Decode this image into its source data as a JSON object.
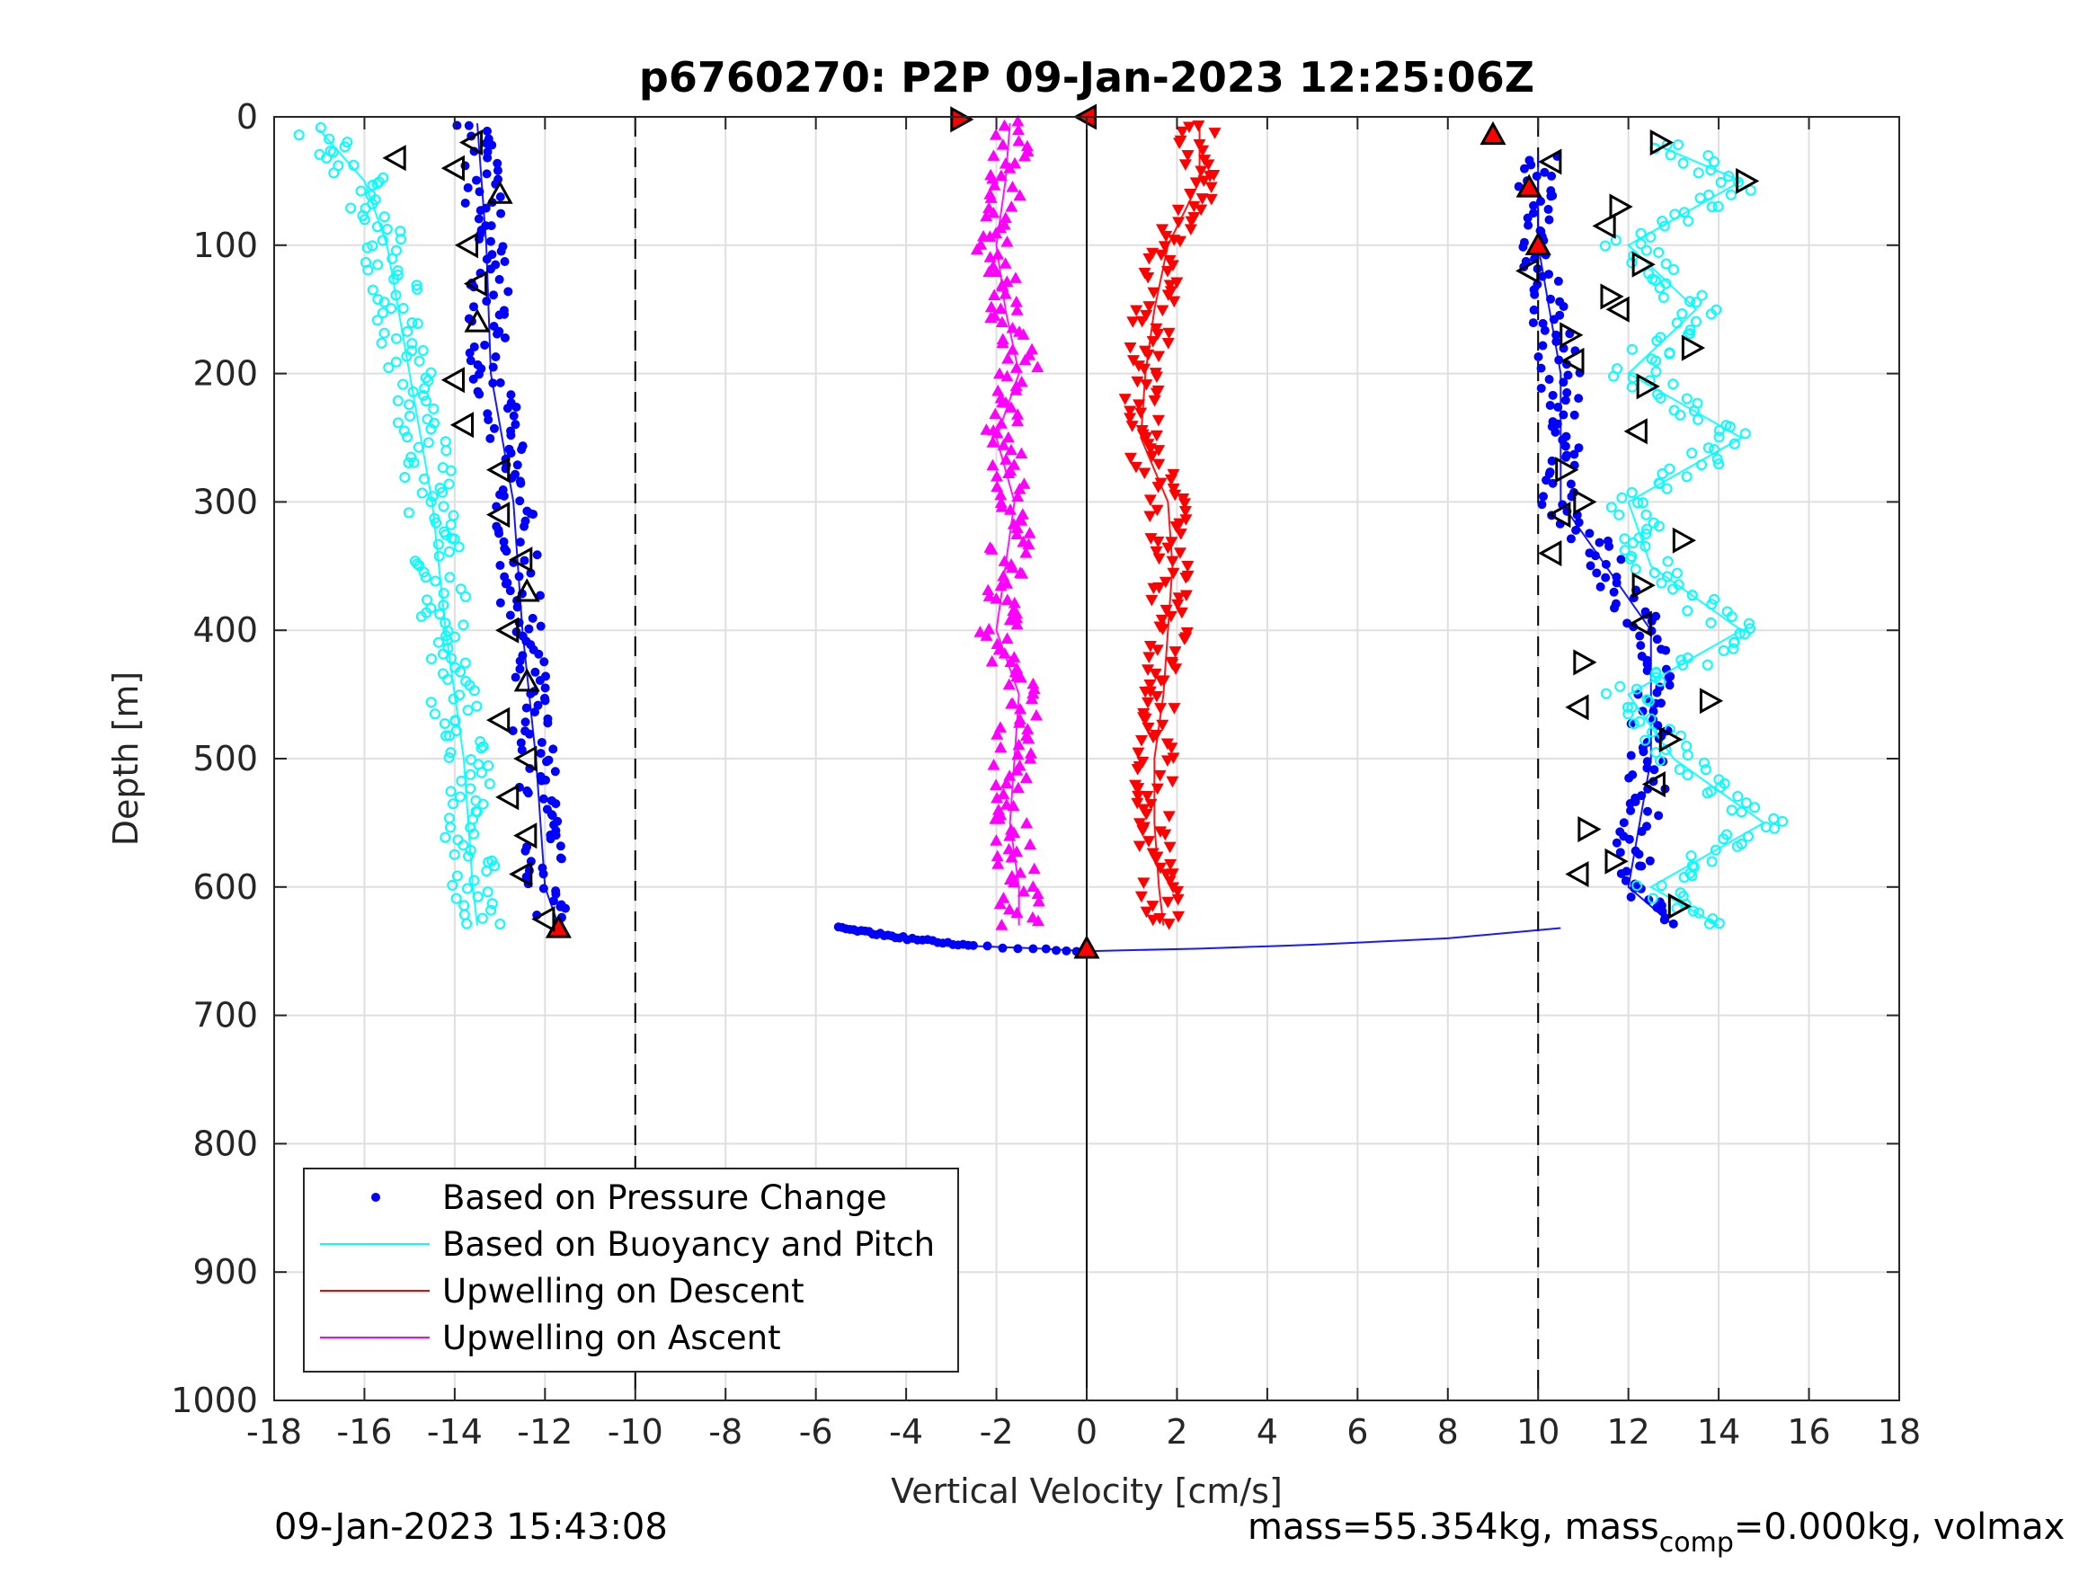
{
  "chart_data": {
    "type": "scatter",
    "title": "p6760270: P2P 09-Jan-2023 12:25:06Z",
    "xlabel": "Vertical Velocity [cm/s]",
    "ylabel": "Depth [m]",
    "xlim": [
      -18,
      18
    ],
    "ylim": [
      0,
      1000
    ],
    "y_reversed": true,
    "grid": true,
    "legend_position": "bottom-left",
    "xticks": [
      "-18",
      "-16",
      "-14",
      "-12",
      "-10",
      "-8",
      "-6",
      "-4",
      "-2",
      "0",
      "2",
      "4",
      "6",
      "8",
      "10",
      "12",
      "14",
      "16",
      "18"
    ],
    "yticks": [
      "0",
      "100",
      "200",
      "300",
      "400",
      "500",
      "600",
      "700",
      "800",
      "900",
      "1000"
    ],
    "reference_lines": [
      {
        "x": -10,
        "style": "dashed"
      },
      {
        "x": 10,
        "style": "dashed"
      },
      {
        "x": 0,
        "style": "solid"
      }
    ],
    "series": [
      {
        "name": "Based on Pressure Change",
        "color": "#0000ff",
        "marker": "dot",
        "segments": [
          {
            "depth": [
              5,
              100,
              200,
              300,
              400,
              500,
              600,
              630
            ],
            "velocity": [
              -13.5,
              -13.3,
              -13.2,
              -12.7,
              -12.5,
              -12.2,
              -12.0,
              -11.7
            ]
          },
          {
            "depth": [
              632,
              640,
              646,
              648,
              650,
              648,
              645,
              640,
              632
            ],
            "velocity": [
              -5.5,
              -4.0,
              -2.5,
              -1.0,
              0.0,
              2.5,
              5.0,
              8.0,
              10.5
            ]
          },
          {
            "depth": [
              630,
              600,
              500,
              400,
              300,
              200,
              100,
              30
            ],
            "velocity": [
              13.0,
              12.0,
              12.5,
              12.5,
              10.5,
              10.5,
              10.0,
              10.0
            ]
          }
        ]
      },
      {
        "name": "Based on Buoyancy and Pitch",
        "color": "#00ffff",
        "marker": "circle",
        "segments": [
          {
            "depth": [
              10,
              50,
              100,
              200,
              300,
              400,
              500,
              600,
              630
            ],
            "velocity": [
              -17.0,
              -16.0,
              -15.5,
              -15.0,
              -14.5,
              -14.2,
              -13.8,
              -13.6,
              -13.5
            ]
          },
          {
            "depth": [
              630,
              600,
              550,
              500,
              450,
              400,
              350,
              300,
              250,
              200,
              150,
              100,
              50,
              20
            ],
            "velocity": [
              14.0,
              12.5,
              15.0,
              13.0,
              12.0,
              14.5,
              12.5,
              12.0,
              14.5,
              12.0,
              13.5,
              12.0,
              14.5,
              12.5
            ]
          }
        ]
      },
      {
        "name": "Upwelling on Descent",
        "color": "#ff0000",
        "marker": "triangle-down",
        "segments": [
          {
            "depth": [
              5,
              50,
              100,
              150,
              200,
              250,
              300,
              350,
              400,
              450,
              500,
              550,
              600,
              630
            ],
            "velocity": [
              2.5,
              2.5,
              1.8,
              1.5,
              1.3,
              1.2,
              1.8,
              1.9,
              1.8,
              1.7,
              1.5,
              1.5,
              1.6,
              1.7
            ]
          }
        ]
      },
      {
        "name": "Upwelling on Ascent",
        "color": "#ff00ff",
        "marker": "triangle-up",
        "segments": [
          {
            "depth": [
              630,
              600,
              550,
              500,
              450,
              400,
              350,
              300,
              250,
              200,
              150,
              100,
              50,
              5
            ],
            "velocity": [
              -1.5,
              -1.5,
              -1.7,
              -1.6,
              -1.5,
              -2.0,
              -1.8,
              -1.6,
              -2.0,
              -1.5,
              -1.8,
              -2.0,
              -1.8,
              -1.7
            ]
          }
        ]
      }
    ],
    "event_markers": [
      {
        "depth": 2,
        "velocity": -2.8,
        "shape": "triangle-right",
        "fill": "#ff0000"
      },
      {
        "depth": 0,
        "velocity": 0.0,
        "shape": "triangle-left",
        "fill": "#ff0000"
      },
      {
        "depth": 14,
        "velocity": 9.0,
        "shape": "triangle-up",
        "fill": "#ff0000"
      },
      {
        "depth": 55,
        "velocity": 9.8,
        "shape": "triangle-up",
        "fill": "#ff0000"
      },
      {
        "depth": 100,
        "velocity": 10.0,
        "shape": "triangle-up",
        "fill": "#ff0000"
      },
      {
        "depth": 632,
        "velocity": -11.7,
        "shape": "triangle-up",
        "fill": "#ff0000"
      },
      {
        "depth": 648,
        "velocity": 0.0,
        "shape": "triangle-up",
        "fill": "#ff0000"
      },
      {
        "depth": 32,
        "velocity": -15.3,
        "shape": "triangle-left",
        "fill": "none"
      },
      {
        "depth": 20,
        "velocity": -13.6,
        "shape": "triangle-left",
        "fill": "none"
      },
      {
        "depth": 40,
        "velocity": -14.0,
        "shape": "triangle-left",
        "fill": "none"
      },
      {
        "depth": 60,
        "velocity": -13.0,
        "shape": "triangle-up",
        "fill": "none"
      },
      {
        "depth": 100,
        "velocity": -13.7,
        "shape": "triangle-left",
        "fill": "none"
      },
      {
        "depth": 130,
        "velocity": -13.5,
        "shape": "triangle-left",
        "fill": "none"
      },
      {
        "depth": 160,
        "velocity": -13.5,
        "shape": "triangle-up",
        "fill": "none"
      },
      {
        "depth": 205,
        "velocity": -14.0,
        "shape": "triangle-left",
        "fill": "none"
      },
      {
        "depth": 240,
        "velocity": -13.8,
        "shape": "triangle-left",
        "fill": "none"
      },
      {
        "depth": 275,
        "velocity": -13.0,
        "shape": "triangle-left",
        "fill": "none"
      },
      {
        "depth": 310,
        "velocity": -13.0,
        "shape": "triangle-left",
        "fill": "none"
      },
      {
        "depth": 345,
        "velocity": -12.5,
        "shape": "triangle-left",
        "fill": "none"
      },
      {
        "depth": 370,
        "velocity": -12.4,
        "shape": "triangle-up",
        "fill": "none"
      },
      {
        "depth": 400,
        "velocity": -12.8,
        "shape": "triangle-left",
        "fill": "none"
      },
      {
        "depth": 440,
        "velocity": -12.4,
        "shape": "triangle-up",
        "fill": "none"
      },
      {
        "depth": 470,
        "velocity": -13.0,
        "shape": "triangle-left",
        "fill": "none"
      },
      {
        "depth": 500,
        "velocity": -12.4,
        "shape": "triangle-left",
        "fill": "none"
      },
      {
        "depth": 530,
        "velocity": -12.8,
        "shape": "triangle-left",
        "fill": "none"
      },
      {
        "depth": 560,
        "velocity": -12.4,
        "shape": "triangle-left",
        "fill": "none"
      },
      {
        "depth": 590,
        "velocity": -12.5,
        "shape": "triangle-left",
        "fill": "none"
      },
      {
        "depth": 625,
        "velocity": -12.0,
        "shape": "triangle-left",
        "fill": "none"
      },
      {
        "depth": 20,
        "velocity": 12.7,
        "shape": "triangle-right",
        "fill": "none"
      },
      {
        "depth": 50,
        "velocity": 14.6,
        "shape": "triangle-right",
        "fill": "none"
      },
      {
        "depth": 35,
        "velocity": 10.3,
        "shape": "triangle-left",
        "fill": "none"
      },
      {
        "depth": 70,
        "velocity": 11.8,
        "shape": "triangle-right",
        "fill": "none"
      },
      {
        "depth": 85,
        "velocity": 11.5,
        "shape": "triangle-left",
        "fill": "none"
      },
      {
        "depth": 115,
        "velocity": 12.3,
        "shape": "triangle-right",
        "fill": "none"
      },
      {
        "depth": 120,
        "velocity": 9.8,
        "shape": "triangle-left",
        "fill": "none"
      },
      {
        "depth": 140,
        "velocity": 11.6,
        "shape": "triangle-right",
        "fill": "none"
      },
      {
        "depth": 150,
        "velocity": 11.8,
        "shape": "triangle-left",
        "fill": "none"
      },
      {
        "depth": 170,
        "velocity": 10.7,
        "shape": "triangle-right",
        "fill": "none"
      },
      {
        "depth": 180,
        "velocity": 13.4,
        "shape": "triangle-right",
        "fill": "none"
      },
      {
        "depth": 190,
        "velocity": 10.8,
        "shape": "triangle-left",
        "fill": "none"
      },
      {
        "depth": 210,
        "velocity": 12.4,
        "shape": "triangle-right",
        "fill": "none"
      },
      {
        "depth": 245,
        "velocity": 12.2,
        "shape": "triangle-left",
        "fill": "none"
      },
      {
        "depth": 275,
        "velocity": 10.6,
        "shape": "triangle-right",
        "fill": "none"
      },
      {
        "depth": 300,
        "velocity": 11.0,
        "shape": "triangle-right",
        "fill": "none"
      },
      {
        "depth": 310,
        "velocity": 10.5,
        "shape": "triangle-left",
        "fill": "none"
      },
      {
        "depth": 330,
        "velocity": 13.2,
        "shape": "triangle-right",
        "fill": "none"
      },
      {
        "depth": 340,
        "velocity": 10.3,
        "shape": "triangle-left",
        "fill": "none"
      },
      {
        "depth": 365,
        "velocity": 12.3,
        "shape": "triangle-right",
        "fill": "none"
      },
      {
        "depth": 395,
        "velocity": 12.3,
        "shape": "triangle-left",
        "fill": "none"
      },
      {
        "depth": 425,
        "velocity": 11.0,
        "shape": "triangle-right",
        "fill": "none"
      },
      {
        "depth": 455,
        "velocity": 13.8,
        "shape": "triangle-right",
        "fill": "none"
      },
      {
        "depth": 460,
        "velocity": 10.9,
        "shape": "triangle-left",
        "fill": "none"
      },
      {
        "depth": 485,
        "velocity": 12.9,
        "shape": "triangle-right",
        "fill": "none"
      },
      {
        "depth": 520,
        "velocity": 12.6,
        "shape": "triangle-left",
        "fill": "none"
      },
      {
        "depth": 555,
        "velocity": 11.1,
        "shape": "triangle-right",
        "fill": "none"
      },
      {
        "depth": 580,
        "velocity": 11.7,
        "shape": "triangle-right",
        "fill": "none"
      },
      {
        "depth": 590,
        "velocity": 10.9,
        "shape": "triangle-left",
        "fill": "none"
      },
      {
        "depth": 615,
        "velocity": 13.1,
        "shape": "triangle-right",
        "fill": "none"
      }
    ]
  },
  "footer": {
    "timestamp": "09-Jan-2023 15:43:08",
    "mass_text": "mass=55.354kg, mass",
    "mass_subscript": "comp",
    "mass_tail": "=0.000kg, volmax"
  }
}
